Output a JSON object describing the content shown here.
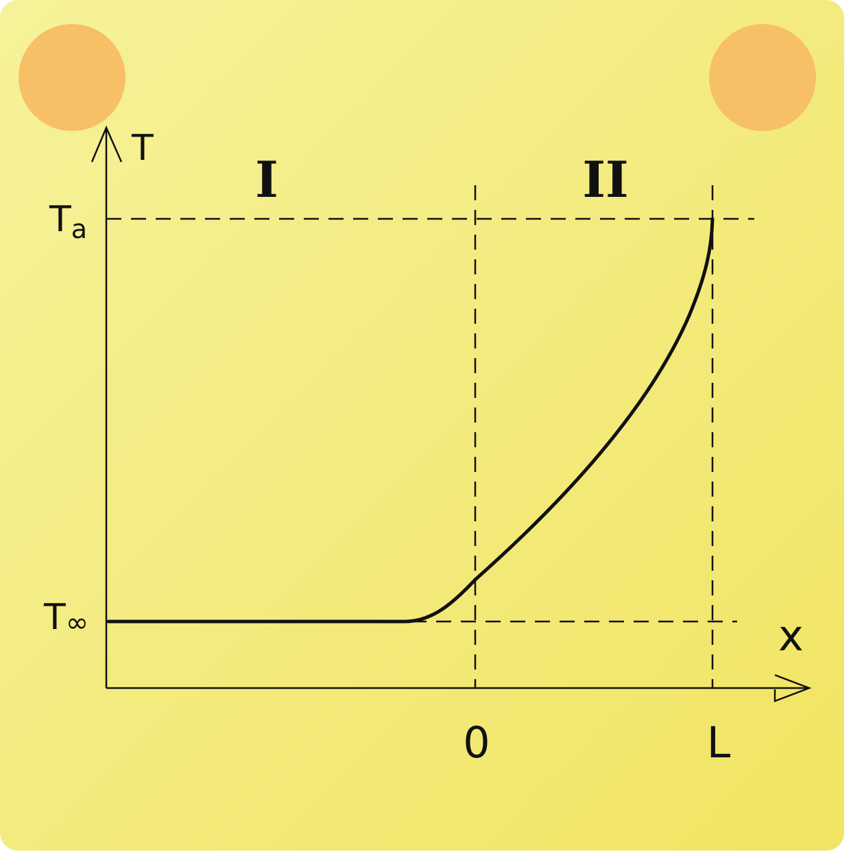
{
  "colors": {
    "card_light": "#f6f29a",
    "card_dark": "#f1e463",
    "dot": "#f7c066",
    "ink": "#111111"
  },
  "diagram": {
    "axis_y_label": "T",
    "axis_x_label": "x",
    "ta_label_main": "T",
    "ta_label_sub": "a",
    "tinf_label_main": "T",
    "tinf_label_sub": "∞",
    "region_one": "I",
    "region_two": "II",
    "origin_tick": "0",
    "length_tick": "L"
  },
  "chart_data": {
    "type": "line",
    "title": "",
    "xlabel": "x",
    "ylabel": "T",
    "x_ticks": [
      "0",
      "L"
    ],
    "y_ticks": [
      "T∞",
      "Ta"
    ],
    "regions": [
      "I",
      "II"
    ],
    "series": [
      {
        "name": "temperature-profile",
        "description_points": [
          {
            "x": "-∞ … ≈ -0.27L",
            "y": "T∞"
          },
          {
            "x": "0",
            "y": "T∞ + 0.10 (Ta - T∞)"
          },
          {
            "x": "L",
            "y": "Ta"
          }
        ]
      }
    ]
  }
}
